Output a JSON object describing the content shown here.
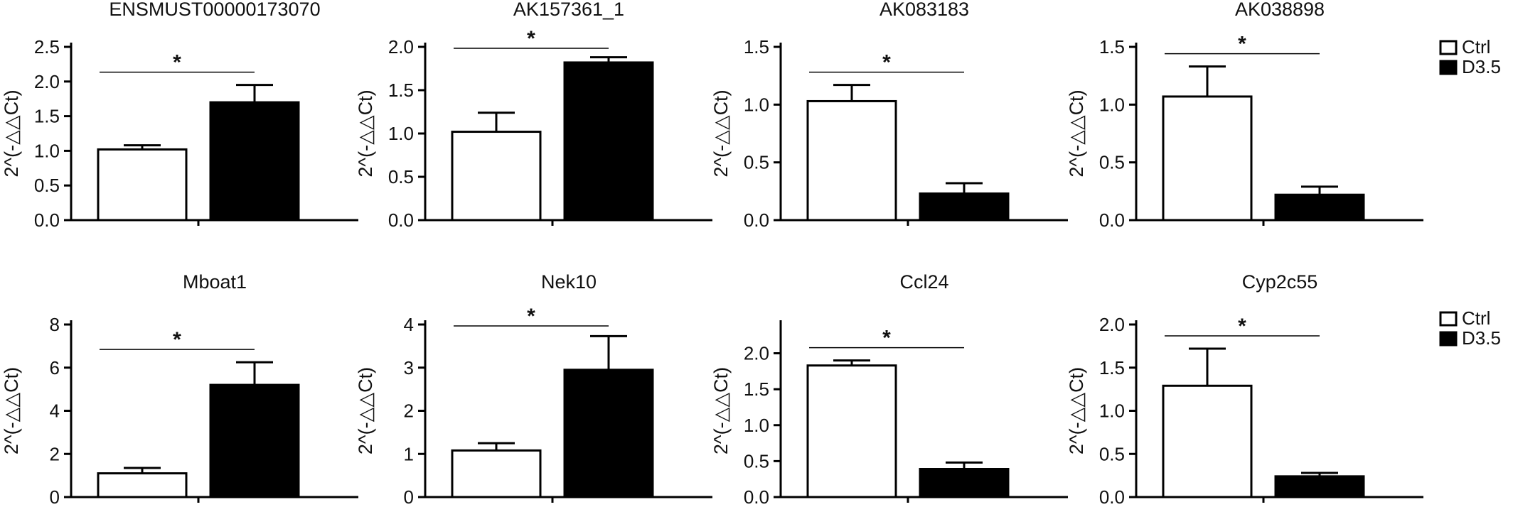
{
  "legend": [
    {
      "name": "Ctrl",
      "fill": "#ffffff"
    },
    {
      "name": "D3.5",
      "fill": "#000000"
    }
  ],
  "colors": {
    "ctrl": "#ffffff",
    "d35": "#000000",
    "stroke": "#000000"
  },
  "chart_data": [
    {
      "type": "bar",
      "title": "ENSMUST00000173070",
      "ylabel": "2^(-△△Ct)",
      "categories": [
        "Ctrl",
        "D3.5"
      ],
      "values": [
        1.02,
        1.7
      ],
      "errors": [
        0.06,
        0.25
      ],
      "ylim": [
        0,
        2.5
      ],
      "yticks": [
        "0.0",
        "0.5",
        "1.0",
        "1.5",
        "2.0",
        "2.5"
      ],
      "significance": "*"
    },
    {
      "type": "bar",
      "title": "AK157361_1",
      "ylabel": "2^(-△△Ct)",
      "categories": [
        "Ctrl",
        "D3.5"
      ],
      "values": [
        1.02,
        1.82
      ],
      "errors": [
        0.22,
        0.06
      ],
      "ylim": [
        0,
        2.0
      ],
      "yticks": [
        "0.0",
        "0.5",
        "1.0",
        "1.5",
        "2.0"
      ],
      "significance": "*"
    },
    {
      "type": "bar",
      "title": "AK083183",
      "ylabel": "2^(-△△Ct)",
      "categories": [
        "Ctrl",
        "D3.5"
      ],
      "values": [
        1.03,
        0.23
      ],
      "errors": [
        0.14,
        0.09
      ],
      "ylim": [
        0,
        1.5
      ],
      "yticks": [
        "0.0",
        "0.5",
        "1.0",
        "1.5"
      ],
      "significance": "*"
    },
    {
      "type": "bar",
      "title": "AK038898",
      "ylabel": "2^(-△△Ct)",
      "categories": [
        "Ctrl",
        "D3.5"
      ],
      "values": [
        1.07,
        0.22
      ],
      "errors": [
        0.26,
        0.07
      ],
      "ylim": [
        0,
        1.5
      ],
      "yticks": [
        "0.0",
        "0.5",
        "1.0",
        "1.5"
      ],
      "significance": "*"
    },
    {
      "type": "bar",
      "title": "Mboat1",
      "ylabel": "2^(-△△Ct)",
      "categories": [
        "Ctrl",
        "D3.5"
      ],
      "values": [
        1.1,
        5.2
      ],
      "errors": [
        0.25,
        1.05
      ],
      "ylim": [
        0,
        8
      ],
      "yticks": [
        "0",
        "2",
        "4",
        "6",
        "8"
      ],
      "significance": "*"
    },
    {
      "type": "bar",
      "title": "Nek10",
      "ylabel": "2^(-△△Ct)",
      "categories": [
        "Ctrl",
        "D3.5"
      ],
      "values": [
        1.08,
        2.95
      ],
      "errors": [
        0.17,
        0.78
      ],
      "ylim": [
        0,
        4
      ],
      "yticks": [
        "0",
        "1",
        "2",
        "3",
        "4"
      ],
      "significance": "*"
    },
    {
      "type": "bar",
      "title": "Ccl24",
      "ylabel": "2^(-△△Ct)",
      "categories": [
        "Ctrl",
        "D3.5"
      ],
      "values": [
        1.83,
        0.39
      ],
      "errors": [
        0.07,
        0.09
      ],
      "ylim": [
        0,
        2.4
      ],
      "yticks": [
        "0.0",
        "0.5",
        "1.0",
        "1.5",
        "2.0"
      ],
      "significance": "*"
    },
    {
      "type": "bar",
      "title": "Cyp2c55",
      "ylabel": "2^(-△△Ct)",
      "categories": [
        "Ctrl",
        "D3.5"
      ],
      "values": [
        1.29,
        0.24
      ],
      "errors": [
        0.43,
        0.04
      ],
      "ylim": [
        0,
        2.0
      ],
      "yticks": [
        "0.0",
        "0.5",
        "1.0",
        "1.5",
        "2.0"
      ],
      "significance": "*"
    }
  ]
}
